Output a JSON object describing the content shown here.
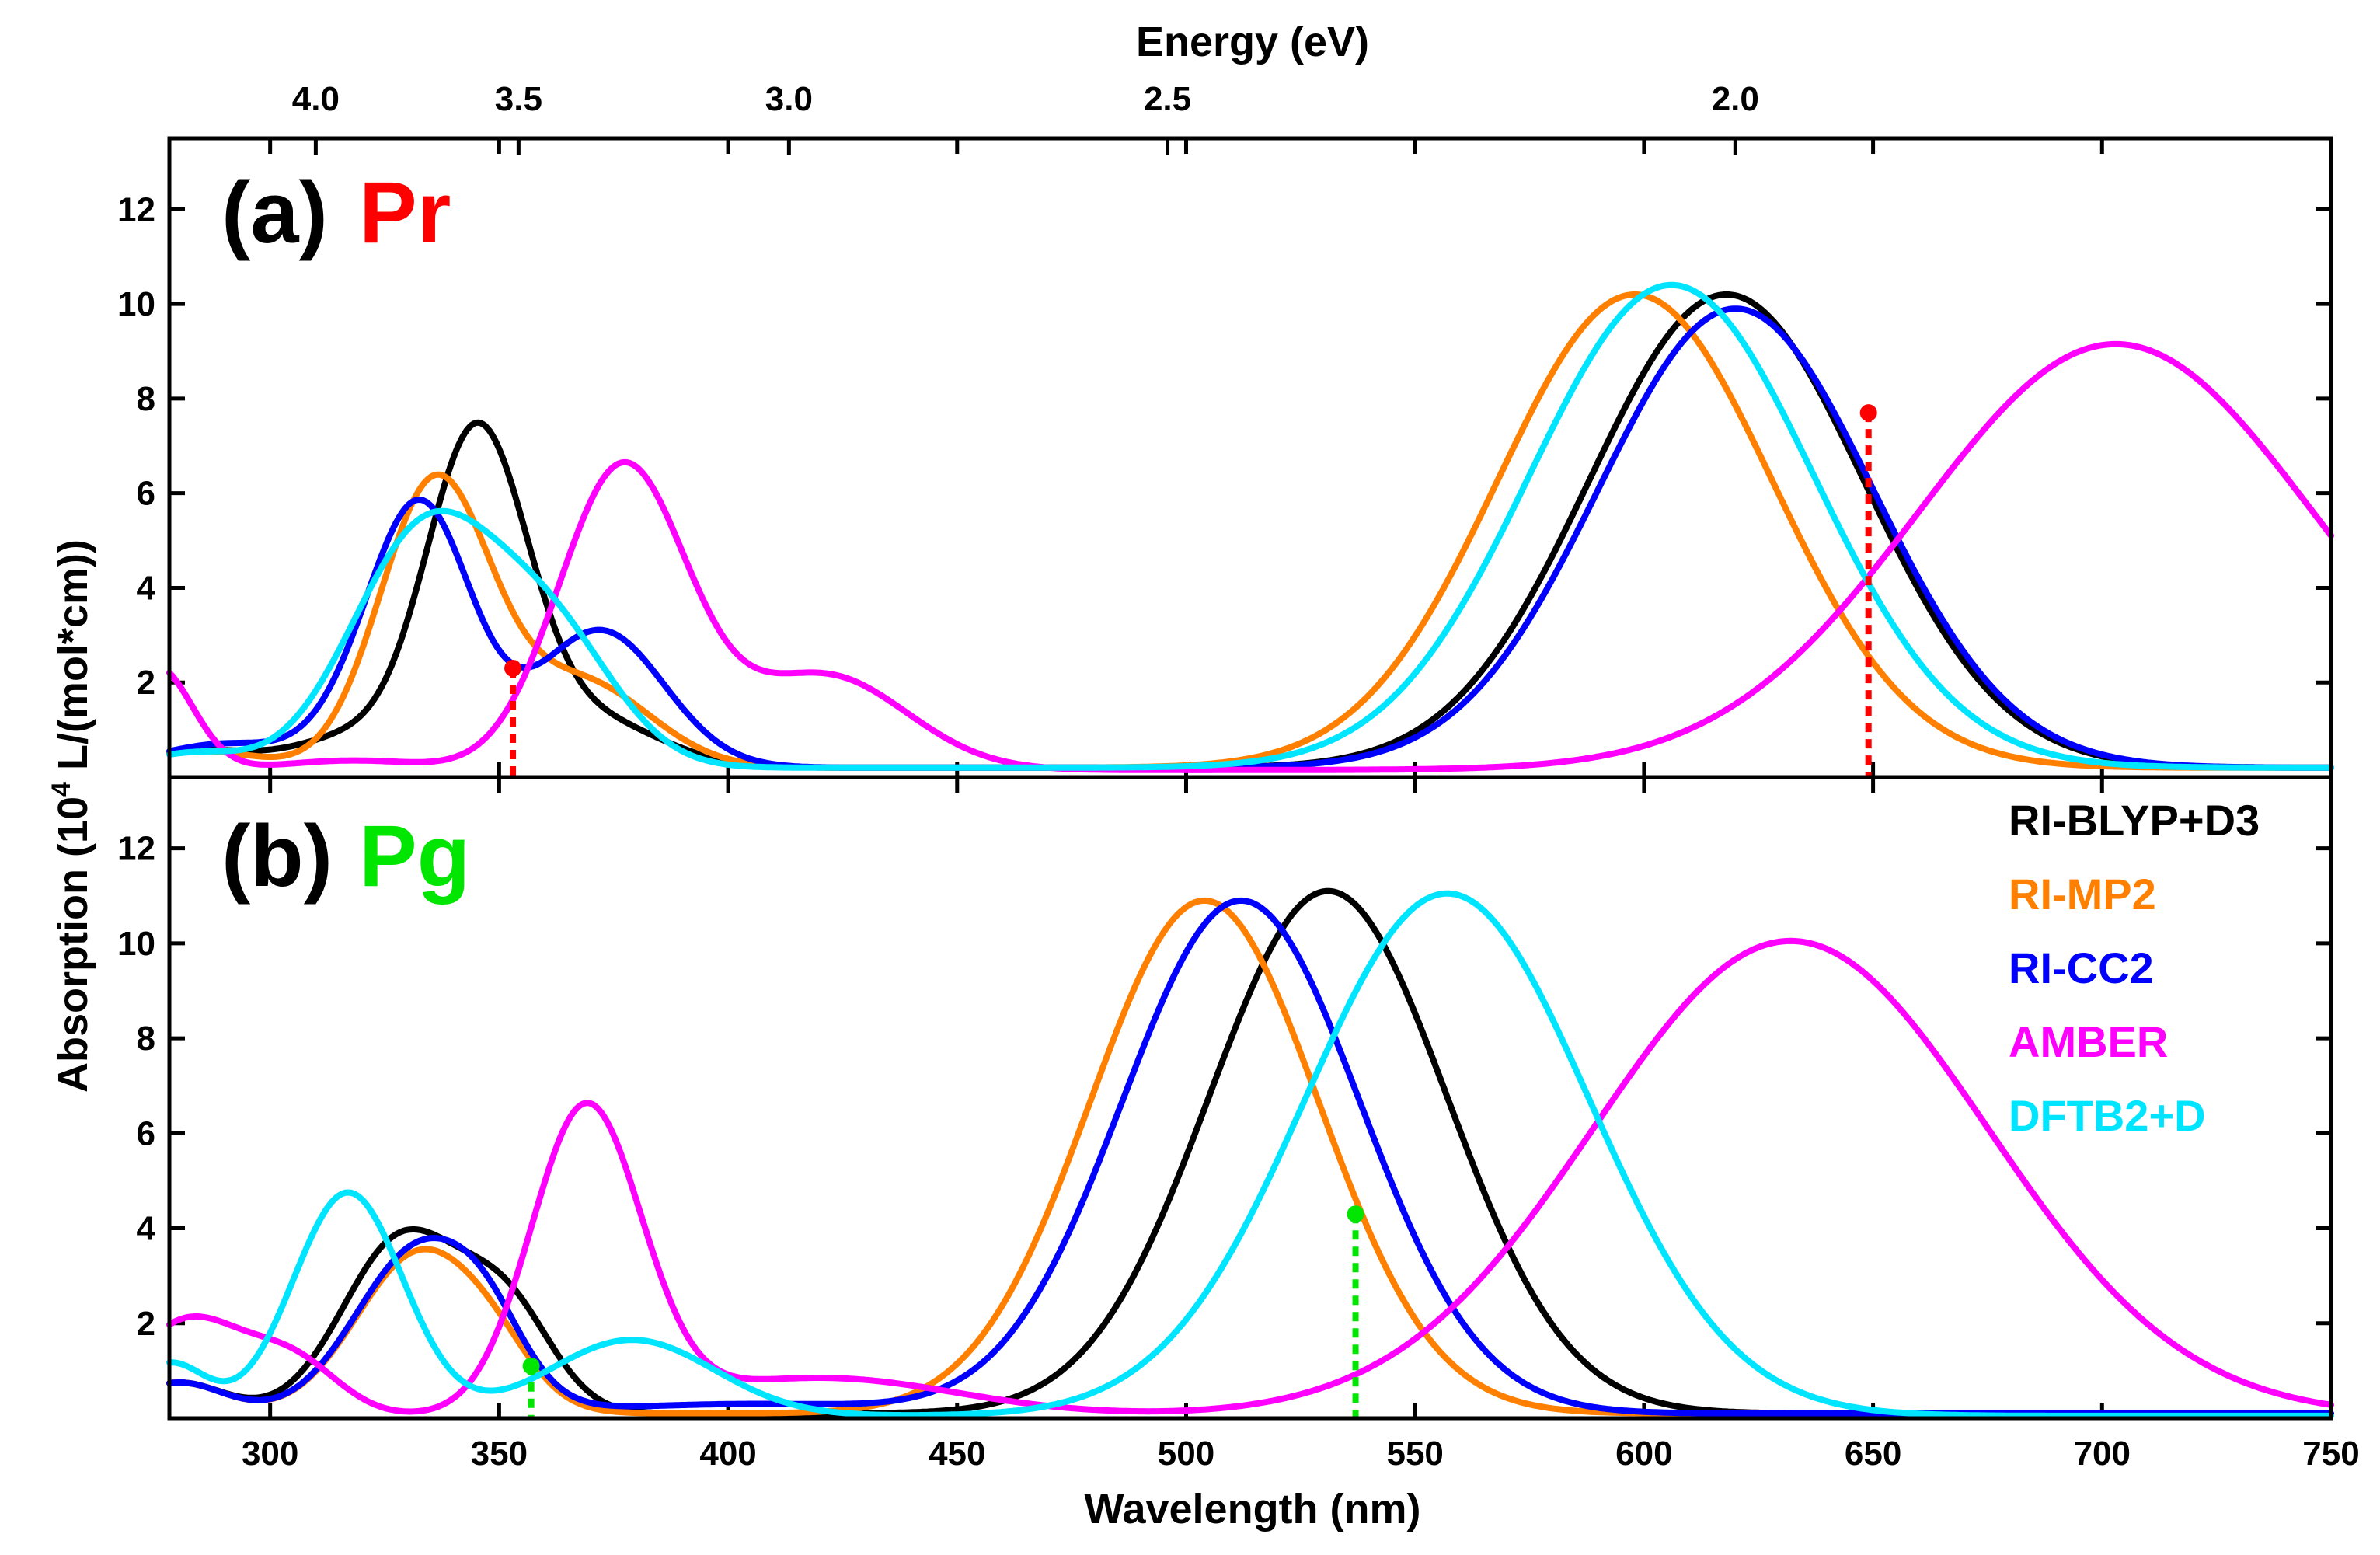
{
  "chart_data": {
    "type": "line",
    "xlabel": "Wavelength (nm)",
    "top_xlabel": "Energy (eV)",
    "ylabel": "Absorption (10^4 L/(mol*cm))",
    "xlim": [
      278,
      750
    ],
    "ylim": [
      0,
      13.5
    ],
    "x_ticks": [
      300,
      350,
      400,
      450,
      500,
      550,
      600,
      650,
      700,
      750
    ],
    "y_ticks": [
      2,
      4,
      6,
      8,
      10,
      12
    ],
    "energy_ticks": [
      {
        "label": "4.0",
        "ev": 4.0
      },
      {
        "label": "3.5",
        "ev": 3.5
      },
      {
        "label": "3.0",
        "ev": 3.0
      },
      {
        "label": "2.5",
        "ev": 2.5
      },
      {
        "label": "2.0",
        "ev": 2.0
      }
    ],
    "legend": [
      {
        "name": "RI-BLYP+D3",
        "color": "#000000"
      },
      {
        "name": "RI-MP2",
        "color": "#FF8000"
      },
      {
        "name": "RI-CC2",
        "color": "#0000FF"
      },
      {
        "name": "AMBER",
        "color": "#FF00FF"
      },
      {
        "name": "DFTB2+D",
        "color": "#00E5FF"
      }
    ],
    "panels": [
      {
        "label": "(a)",
        "species": "Pr",
        "species_color": "#FF0000",
        "series": [
          {
            "name": "RI-BLYP+D3",
            "color": "#000000",
            "baseline": 0.2,
            "bands": [
              [
                285,
                0.35,
                12
              ],
              [
                317,
                0.6,
                12
              ],
              [
                345,
                7.0,
                11
              ],
              [
                370,
                1.0,
                15
              ],
              [
                618,
                10.0,
                30
              ]
            ]
          },
          {
            "name": "RI-MP2",
            "color": "#FF8000",
            "baseline": 0.2,
            "bands": [
              [
                285,
                0.35,
                12
              ],
              [
                336,
                6.0,
                12
              ],
              [
                368,
                1.8,
                15
              ],
              [
                598,
                10.0,
                30
              ]
            ]
          },
          {
            "name": "RI-CC2",
            "color": "#0000FF",
            "baseline": 0.2,
            "bands": [
              [
                290,
                0.5,
                14
              ],
              [
                318,
                0.6,
                10
              ],
              [
                333,
                5.4,
                11
              ],
              [
                372,
                2.9,
                14
              ],
              [
                620,
                9.7,
                30
              ]
            ]
          },
          {
            "name": "AMBER",
            "color": "#FF00FF",
            "baseline": 0.15,
            "bands": [
              [
                275,
                2.2,
                8
              ],
              [
                318,
                0.2,
                15
              ],
              [
                377,
                6.4,
                14
              ],
              [
                421,
                2.0,
                18
              ],
              [
                703,
                9.0,
                43
              ]
            ]
          },
          {
            "name": "DFTB2+D",
            "color": "#00E5FF",
            "baseline": 0.2,
            "bands": [
              [
                283,
                0.3,
                10
              ],
              [
                334,
                5.0,
                16
              ],
              [
                362,
                2.5,
                14
              ],
              [
                606,
                10.2,
                31
              ]
            ]
          }
        ],
        "markers": [
          {
            "x": 353,
            "y": 2.3,
            "color": "#FF0000"
          },
          {
            "x": 649,
            "y": 7.7,
            "color": "#FF0000"
          }
        ]
      },
      {
        "label": "(b)",
        "species": "Pg",
        "species_color": "#00E600",
        "series": [
          {
            "name": "RI-BLYP+D3",
            "color": "#000000",
            "baseline": 0.1,
            "bands": [
              [
                280,
                0.65,
                10
              ],
              [
                329,
                3.7,
                13
              ],
              [
                352,
                2.0,
                10
              ],
              [
                531,
                11.0,
                26
              ]
            ]
          },
          {
            "name": "RI-MP2",
            "color": "#FF8000",
            "baseline": 0.1,
            "bands": [
              [
                280,
                0.65,
                10
              ],
              [
                333,
                3.4,
                14
              ],
              [
                350,
                0.5,
                8
              ],
              [
                504,
                10.8,
                25
              ]
            ]
          },
          {
            "name": "RI-CC2",
            "color": "#0000FF",
            "baseline": 0.1,
            "bands": [
              [
                280,
                0.65,
                10
              ],
              [
                333,
                3.5,
                14
              ],
              [
                348,
                0.8,
                8
              ],
              [
                405,
                0.2,
                30
              ],
              [
                512,
                10.8,
                26
              ]
            ]
          },
          {
            "name": "AMBER",
            "color": "#FF00FF",
            "baseline": 0.05,
            "bands": [
              [
                282,
                2.0,
                12
              ],
              [
                305,
                1.1,
                10
              ],
              [
                369,
                6.4,
                12
              ],
              [
                420,
                0.8,
                30
              ],
              [
                632,
                10.0,
                43
              ]
            ]
          },
          {
            "name": "DFTB2+D",
            "color": "#00E5FF",
            "baseline": 0.05,
            "bands": [
              [
                278,
                1.1,
                8
              ],
              [
                317,
                4.7,
                12
              ],
              [
                379,
                1.6,
                18
              ],
              [
                557,
                11.0,
                31
              ]
            ]
          }
        ],
        "markers": [
          {
            "x": 357,
            "y": 1.1,
            "color": "#00E600"
          },
          {
            "x": 537,
            "y": 4.3,
            "color": "#00E600"
          }
        ]
      }
    ]
  }
}
